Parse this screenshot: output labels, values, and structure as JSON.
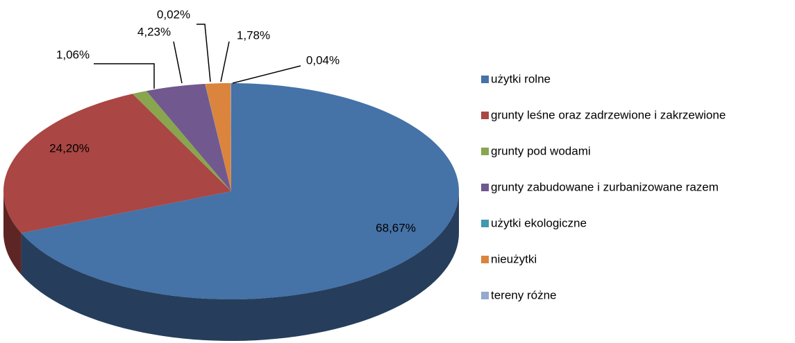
{
  "chart_data": {
    "type": "pie",
    "categories": [
      "użytki rolne",
      "grunty leśne oraz zadrzewione i zakrzewione",
      "grunty pod wodami",
      "grunty zabudowane i zurbanizowane razem",
      "użytki ekologiczne",
      "nieużytki",
      "tereny różne"
    ],
    "values": [
      68.67,
      24.2,
      1.06,
      4.23,
      0.02,
      1.78,
      0.04
    ],
    "value_labels": [
      "68,67%",
      "24,20%",
      "1,06%",
      "4,23%",
      "0,02%",
      "1,78%",
      "0,04%"
    ],
    "colors": [
      "#4572A7",
      "#AA4643",
      "#89A54E",
      "#71588F",
      "#4198AF",
      "#DB843D",
      "#93A9CF"
    ],
    "legend": "right"
  }
}
